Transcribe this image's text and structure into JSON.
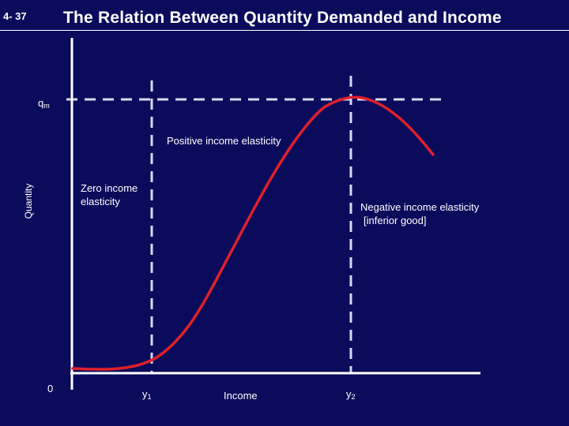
{
  "slide": {
    "number": "4- 37",
    "title": "The Relation Between Quantity Demanded and Income"
  },
  "axes": {
    "ylabel": "Quantity",
    "xlabel": "Income",
    "origin": "0"
  },
  "markers": {
    "qm": {
      "base": "q",
      "sub": "m"
    },
    "y1": {
      "base": "y",
      "sub": "1"
    },
    "y2": {
      "base": "y",
      "sub": "2"
    }
  },
  "annotations": {
    "positive": "Positive income elasticity",
    "zero_line1": "Zero income",
    "zero_line2": "elasticity",
    "negative_line1": "Negative income elasticity",
    "negative_line2": "[inferior good]"
  },
  "colors": {
    "background": "#0b0b5c",
    "axis": "#ffffff",
    "guide": "#d8d8f0",
    "curve": "#e0202a"
  }
}
